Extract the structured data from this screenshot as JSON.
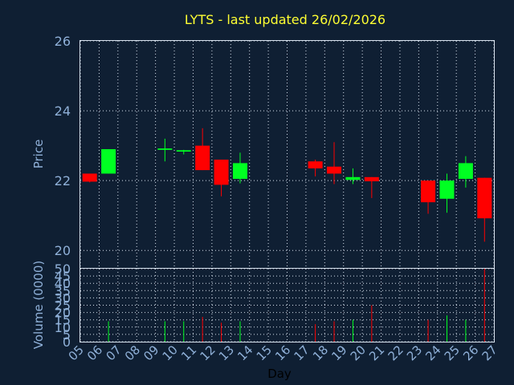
{
  "chart_data": {
    "type": "candlestick",
    "title": "LYTS - last updated 26/02/2026",
    "colors": {
      "up": "#00ff22",
      "down": "#ff0000",
      "title": "#ffff33",
      "axis_text": "#8fb0d8",
      "background": "#0f1f33",
      "grid": "#d8e2ee"
    },
    "price_panel": {
      "ylabel": "Price",
      "ylim": [
        19.5,
        26
      ],
      "yticks": [
        "20",
        "22",
        "24",
        "26"
      ],
      "grid": true
    },
    "volume_panel": {
      "ylabel": "Volume (0000)",
      "ylim": [
        0,
        50
      ],
      "yticks": [
        "0",
        "5",
        "10",
        "15",
        "20",
        "25",
        "30",
        "35",
        "40",
        "45",
        "50"
      ],
      "grid": true
    },
    "xlabel": "Day",
    "x_ticks": [
      "05",
      "06",
      "07",
      "08",
      "09",
      "10",
      "11",
      "12",
      "13",
      "14",
      "15",
      "16",
      "17",
      "18",
      "19",
      "20",
      "21",
      "22",
      "23",
      "24",
      "25",
      "26",
      "27"
    ],
    "candles": [
      {
        "day": "05",
        "open": 22.2,
        "high": 22.2,
        "low": 21.95,
        "close": 21.97,
        "volume": 0
      },
      {
        "day": "06",
        "open": 22.2,
        "high": 22.9,
        "low": 22.2,
        "close": 22.9,
        "volume": 14
      },
      {
        "day": "09",
        "open": 22.88,
        "high": 23.2,
        "low": 22.55,
        "close": 22.92,
        "volume": 14
      },
      {
        "day": "10",
        "open": 22.83,
        "high": 22.88,
        "low": 22.75,
        "close": 22.87,
        "volume": 14
      },
      {
        "day": "11",
        "open": 23.0,
        "high": 23.5,
        "low": 22.3,
        "close": 22.3,
        "volume": 17
      },
      {
        "day": "12",
        "open": 22.6,
        "high": 22.6,
        "low": 21.55,
        "close": 21.88,
        "volume": 13
      },
      {
        "day": "13",
        "open": 22.05,
        "high": 22.8,
        "low": 21.92,
        "close": 22.5,
        "volume": 14
      },
      {
        "day": "17",
        "open": 22.55,
        "high": 22.6,
        "low": 22.12,
        "close": 22.35,
        "volume": 12
      },
      {
        "day": "18",
        "open": 22.4,
        "high": 23.1,
        "low": 21.9,
        "close": 22.2,
        "volume": 14
      },
      {
        "day": "19",
        "open": 22.02,
        "high": 22.35,
        "low": 21.9,
        "close": 22.1,
        "volume": 15
      },
      {
        "day": "20",
        "open": 22.1,
        "high": 22.1,
        "low": 21.5,
        "close": 21.98,
        "volume": 25
      },
      {
        "day": "23",
        "open": 22.0,
        "high": 22.0,
        "low": 21.05,
        "close": 21.38,
        "volume": 15
      },
      {
        "day": "24",
        "open": 21.48,
        "high": 22.2,
        "low": 21.08,
        "close": 22.0,
        "volume": 18
      },
      {
        "day": "25",
        "open": 22.05,
        "high": 22.7,
        "low": 21.8,
        "close": 22.5,
        "volume": 15
      },
      {
        "day": "26",
        "open": 22.08,
        "high": 22.08,
        "low": 20.25,
        "close": 20.92,
        "volume": 50
      }
    ]
  }
}
